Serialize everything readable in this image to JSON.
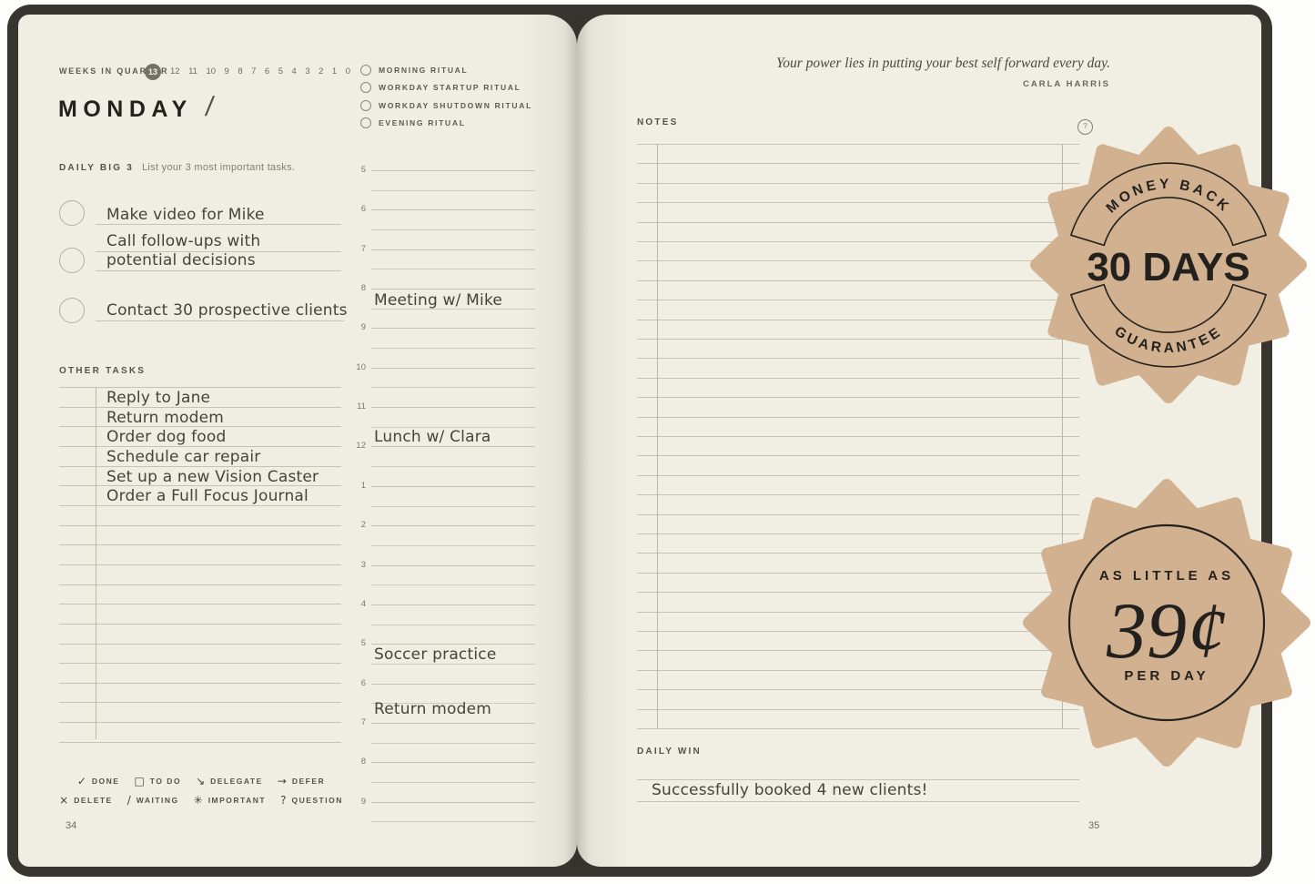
{
  "left_page": {
    "weeks_bar": {
      "label": "WEEKS IN QUARTER",
      "current_week": "13",
      "weeks": [
        "12",
        "11",
        "10",
        "9",
        "8",
        "7",
        "6",
        "5",
        "4",
        "3",
        "2",
        "1",
        "0"
      ]
    },
    "day_heading": "MONDAY",
    "date_separator": "/",
    "daily_big3": {
      "title": "DAILY BIG 3",
      "subtitle": "List your 3 most important tasks.",
      "tasks": [
        "Make video for Mike",
        "Call follow-ups with potential decisions",
        "Contact 30 prospective clients"
      ]
    },
    "other_tasks": {
      "title": "OTHER TASKS",
      "tasks": [
        "Reply to Jane",
        "Return modem",
        "Order dog food",
        "Schedule car repair",
        "Set up a new Vision Caster",
        "Order a Full Focus Journal"
      ]
    },
    "rituals": [
      "MORNING RITUAL",
      "WORKDAY STARTUP RITUAL",
      "WORKDAY SHUTDOWN RITUAL",
      "EVENING RITUAL"
    ],
    "schedule": {
      "hours": [
        "5",
        "6",
        "7",
        "8",
        "9",
        "10",
        "11",
        "12",
        "1",
        "2",
        "3",
        "4",
        "5",
        "6",
        "7",
        "8",
        "9"
      ],
      "entries": [
        {
          "hour": "8",
          "text": "Meeting w/ Mike"
        },
        {
          "hour": "12",
          "text": "Lunch w/ Clara"
        },
        {
          "hour": "5",
          "text": "Soccer practice"
        },
        {
          "hour": "7",
          "text": "Return modem"
        }
      ]
    },
    "legend": [
      {
        "symbol": "✓",
        "label": "DONE"
      },
      {
        "symbol": "□",
        "label": "TO DO"
      },
      {
        "symbol": "↘",
        "label": "DELEGATE"
      },
      {
        "symbol": "→",
        "label": "DEFER"
      },
      {
        "symbol": "×",
        "label": "DELETE"
      },
      {
        "symbol": "/",
        "label": "WAITING"
      },
      {
        "symbol": "✳",
        "label": "IMPORTANT"
      },
      {
        "symbol": "?",
        "label": "QUESTION"
      }
    ],
    "page_number": "34"
  },
  "right_page": {
    "quote": {
      "text": "Your power lies in putting your best self forward every day.",
      "author": "CARLA HARRIS"
    },
    "notes": {
      "title": "NOTES"
    },
    "daily_win": {
      "title": "DAILY WIN",
      "entry": "Successfully booked 4 new clients!"
    },
    "page_number": "35"
  },
  "badges": {
    "guarantee": {
      "arc_top": "MONEY BACK",
      "center": "30 DAYS",
      "arc_bottom": "GUARANTEE"
    },
    "price": {
      "top": "AS LITTLE AS",
      "center": "39¢",
      "bottom": "PER DAY"
    }
  },
  "colors": {
    "badge_fill": "#d2b190",
    "badge_text": "#23211d",
    "cover": "#383531",
    "page": "#f0eee2",
    "rule": "#c6c3b3",
    "handwriting": "#45433c"
  }
}
